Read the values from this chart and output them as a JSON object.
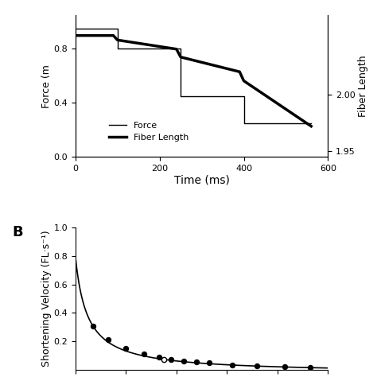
{
  "panel_A": {
    "force_time": [
      0,
      100,
      100,
      250,
      250,
      400,
      400,
      560
    ],
    "force_vals": [
      0.95,
      0.95,
      0.8,
      0.8,
      0.45,
      0.45,
      0.25,
      0.25
    ],
    "fiber_time": [
      0,
      100,
      150,
      250,
      300,
      400,
      400,
      470,
      560
    ],
    "fiber_vals": [
      2.05,
      2.05,
      2.04,
      2.035,
      2.025,
      2.02,
      2.01,
      1.995,
      1.975
    ],
    "xlabel": "Time (ms)",
    "ylabel_left": "Force (m",
    "ylabel_right": "Fiber Length",
    "xlim": [
      0,
      600
    ],
    "ylim_left": [
      0.0,
      1.05
    ],
    "ylim_right": [
      1.945,
      2.07
    ],
    "xticks": [
      0,
      200,
      400,
      600
    ],
    "yticks_left": [
      0.0,
      0.4,
      0.8
    ],
    "yticks_right": [
      1.95,
      2.0
    ],
    "legend_force": "Force",
    "legend_fiber": "Fiber Length"
  },
  "panel_B": {
    "hill_a": 0.17,
    "hill_b": 0.17,
    "hill_c": 0.0,
    "filled_dots_x": [
      0.07,
      0.13,
      0.2,
      0.27,
      0.33,
      0.38,
      0.43,
      0.48,
      0.53,
      0.62,
      0.72,
      0.83,
      0.93
    ],
    "filled_dots_y": [
      0.305,
      0.208,
      0.148,
      0.108,
      0.085,
      0.07,
      0.06,
      0.052,
      0.045,
      0.032,
      0.024,
      0.018,
      0.014
    ],
    "open_dot_x": [
      0.35
    ],
    "open_dot_y": [
      0.072
    ],
    "ylabel": "Shortening Velocity (FL·s⁻¹)",
    "xlim": [
      0,
      1.0
    ],
    "ylim": [
      0,
      1.0
    ],
    "yticks": [
      0.2,
      0.4,
      0.6,
      0.8,
      1.0
    ],
    "label_B": "B"
  },
  "bg_color": "#ffffff",
  "line_color": "#000000"
}
